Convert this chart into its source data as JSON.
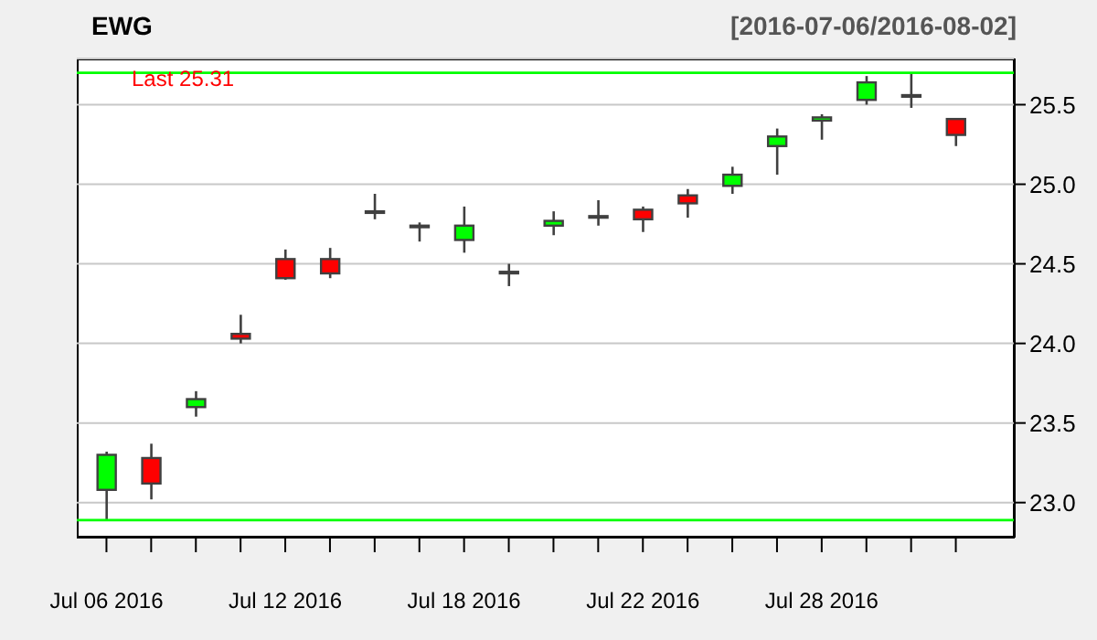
{
  "chart_data": {
    "type": "candlestick",
    "title": "EWG",
    "subtitle": "[2016-07-06/2016-08-02]",
    "annotations": [
      "Last 25.31"
    ],
    "categories": [
      "Jul 06 2016",
      null,
      null,
      null,
      "Jul 12 2016",
      null,
      null,
      null,
      "Jul 18 2016",
      null,
      null,
      null,
      "Jul 22 2016",
      null,
      null,
      null,
      "Jul 28 2016",
      null,
      null,
      null
    ],
    "ohlc": [
      [
        23.08,
        23.32,
        22.89,
        23.3
      ],
      [
        23.28,
        23.37,
        23.02,
        23.12
      ],
      [
        23.6,
        23.7,
        23.54,
        23.65
      ],
      [
        24.06,
        24.18,
        24.0,
        24.03
      ],
      [
        24.53,
        24.59,
        24.4,
        24.41
      ],
      [
        24.53,
        24.6,
        24.41,
        24.44
      ],
      [
        24.82,
        24.94,
        24.78,
        24.83
      ],
      [
        24.73,
        24.76,
        24.64,
        24.74
      ],
      [
        24.65,
        24.86,
        24.57,
        24.74
      ],
      [
        24.45,
        24.5,
        24.36,
        24.44
      ],
      [
        24.74,
        24.83,
        24.68,
        24.77
      ],
      [
        24.79,
        24.9,
        24.74,
        24.8
      ],
      [
        24.84,
        24.86,
        24.7,
        24.78
      ],
      [
        24.93,
        24.97,
        24.79,
        24.88
      ],
      [
        24.99,
        25.11,
        24.94,
        25.06
      ],
      [
        25.24,
        25.35,
        25.06,
        25.3
      ],
      [
        25.4,
        25.44,
        25.28,
        25.42
      ],
      [
        25.53,
        25.68,
        25.5,
        25.64
      ],
      [
        25.56,
        25.7,
        25.48,
        25.55
      ],
      [
        25.41,
        25.41,
        25.24,
        25.31
      ]
    ],
    "colors": [
      "#00ff00",
      "#ff0000",
      "#00ff00",
      "#ff0000",
      "#ff0000",
      "#ff0000",
      "#404040",
      "#404040",
      "#00ff00",
      "#404040",
      "#00ff00",
      "#404040",
      "#ff0000",
      "#ff0000",
      "#00ff00",
      "#00ff00",
      "#00ff00",
      "#00ff00",
      "#404040",
      "#ff0000"
    ],
    "ylim": [
      22.78,
      25.79
    ],
    "yticks": [
      {
        "value": 23,
        "label": "23.0"
      },
      {
        "value": 23.5,
        "label": "23.5"
      },
      {
        "value": 24,
        "label": "24.0"
      },
      {
        "value": 24.5,
        "label": "24.5"
      },
      {
        "value": 25,
        "label": "25.0"
      },
      {
        "value": 25.5,
        "label": "25.5"
      }
    ],
    "ref_lines": [
      {
        "axis": "y",
        "value": 25.7,
        "color": "#00ff00"
      },
      {
        "axis": "y",
        "value": 22.89,
        "color": "#00ff00"
      }
    ],
    "grid": "y"
  }
}
